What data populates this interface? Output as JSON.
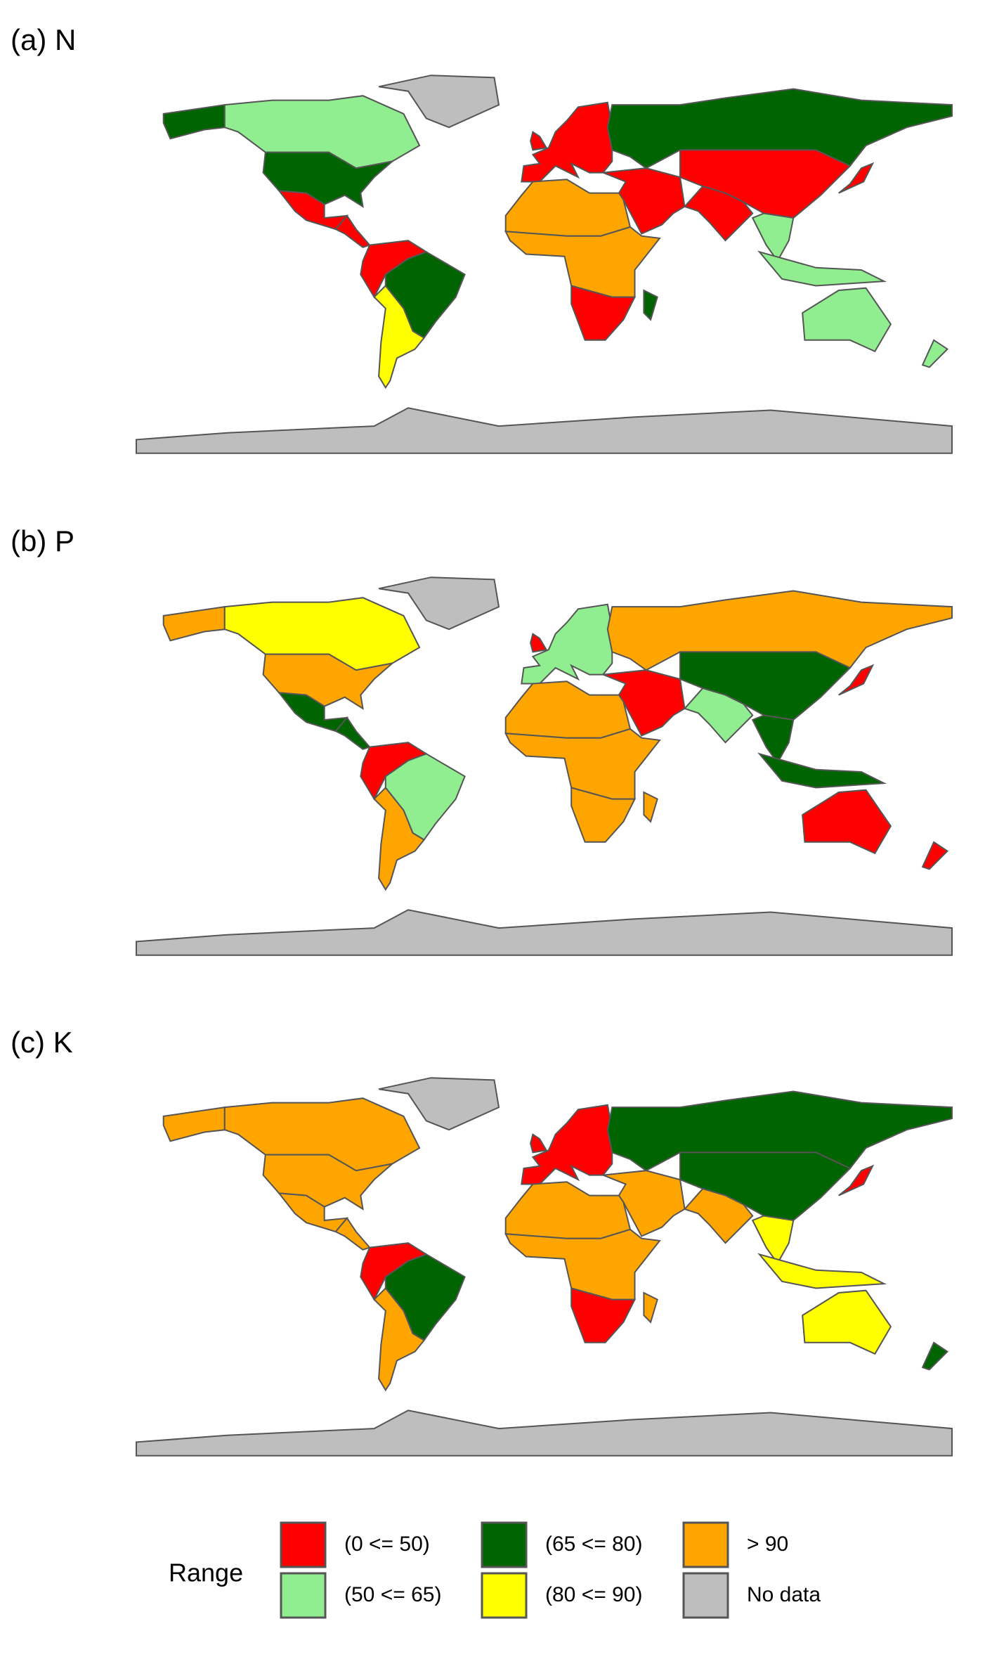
{
  "panels": [
    {
      "label": "(a) N"
    },
    {
      "label": "(b) P"
    },
    {
      "label": "(c) K"
    }
  ],
  "legend": {
    "title": "Range",
    "items": [
      {
        "label": "(0 <= 50)",
        "color": "#ff0000"
      },
      {
        "label": "(50 <= 65)",
        "color": "#90ee90"
      },
      {
        "label": "(65 <= 80)",
        "color": "#006400"
      },
      {
        "label": "(80 <= 90)",
        "color": "#ffff00"
      },
      {
        "label": "> 90",
        "color": "#ffa500"
      },
      {
        "label": "No data",
        "color": "#bebebe"
      }
    ]
  }
}
